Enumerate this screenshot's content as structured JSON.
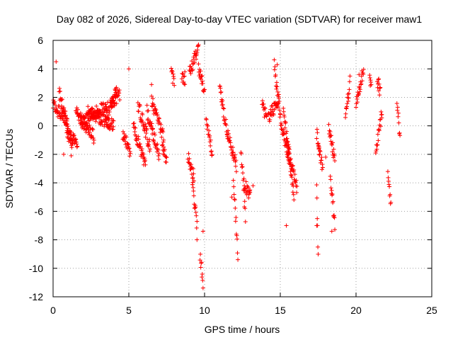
{
  "chart_data": {
    "type": "scatter",
    "title": "Day 082 of 2026, Sidereal Day-to-day VTEC variation (SDTVAR) for receiver maw1",
    "xlabel": "GPS time / hours",
    "ylabel": "SDTVAR / TECUs",
    "xlim": [
      0,
      25
    ],
    "ylim": [
      -12,
      6
    ],
    "xticks": [
      "0",
      "5",
      "10",
      "15",
      "20",
      "25"
    ],
    "yticks": [
      "6",
      "4",
      "2",
      "0",
      "-2",
      "-4",
      "-6",
      "-8",
      "-10",
      "-12"
    ],
    "grid": true,
    "marker": "+",
    "marker_color": "#ff0000",
    "tracks": [
      {
        "t0": 0.0,
        "t1": 1.0,
        "v0": 1.5,
        "v1": 0.2
      },
      {
        "t0": 0.4,
        "t1": 1.3,
        "v0": 2.4,
        "v1": -1.5
      },
      {
        "t0": 0.9,
        "t1": 1.6,
        "v0": -0.5,
        "v1": -1.2
      },
      {
        "t0": 1.5,
        "t1": 2.7,
        "v0": 1.0,
        "v1": -0.8
      },
      {
        "t0": 1.8,
        "t1": 3.6,
        "v0": 0.2,
        "v1": 1.5
      },
      {
        "t0": 2.3,
        "t1": 4.0,
        "v0": 1.0,
        "v1": 0.0
      },
      {
        "t0": 3.5,
        "t1": 4.2,
        "v0": 0.5,
        "v1": 2.5
      },
      {
        "t0": 3.8,
        "t1": 4.4,
        "v0": 1.5,
        "v1": 2.2
      },
      {
        "t0": 4.6,
        "t1": 5.1,
        "v0": -0.5,
        "v1": -2.0
      },
      {
        "t0": 5.3,
        "t1": 6.1,
        "v0": 0.0,
        "v1": -2.8
      },
      {
        "t0": 5.6,
        "t1": 6.4,
        "v0": 1.5,
        "v1": -1.5
      },
      {
        "t0": 6.2,
        "t1": 7.0,
        "v0": 1.0,
        "v1": -2.0
      },
      {
        "t0": 6.5,
        "t1": 7.3,
        "v0": 1.8,
        "v1": -0.8
      },
      {
        "t0": 7.2,
        "t1": 7.5,
        "v0": -1.5,
        "v1": -2.5
      },
      {
        "t0": 7.8,
        "t1": 8.0,
        "v0": 3.6,
        "v1": 3.0
      },
      {
        "t0": 8.5,
        "t1": 8.7,
        "v0": 3.6,
        "v1": 3.0
      },
      {
        "t0": 9.0,
        "t1": 9.6,
        "v0": 3.8,
        "v1": 5.4
      },
      {
        "t0": 9.6,
        "t1": 10.0,
        "v0": 4.0,
        "v1": 2.5
      },
      {
        "t0": 8.9,
        "t1": 9.3,
        "v0": -2.2,
        "v1": -3.6
      },
      {
        "t0": 9.2,
        "t1": 9.5,
        "v0": -4.0,
        "v1": -7.0
      },
      {
        "t0": 9.7,
        "t1": 9.9,
        "v0": -9.0,
        "v1": -11.0
      },
      {
        "t0": 10.1,
        "t1": 10.5,
        "v0": 0.2,
        "v1": -1.8
      },
      {
        "t0": 11.0,
        "t1": 11.5,
        "v0": 2.5,
        "v1": -0.5
      },
      {
        "t0": 11.5,
        "t1": 12.1,
        "v0": -0.5,
        "v1": -2.8
      },
      {
        "t0": 11.9,
        "t1": 12.2,
        "v0": -3.5,
        "v1": -9.0
      },
      {
        "t0": 12.4,
        "t1": 12.7,
        "v0": -1.5,
        "v1": -6.5
      },
      {
        "t0": 12.6,
        "t1": 13.0,
        "v0": -4.0,
        "v1": -5.0
      },
      {
        "t0": 13.8,
        "t1": 14.1,
        "v0": 1.5,
        "v1": 0.5
      },
      {
        "t0": 14.2,
        "t1": 14.9,
        "v0": 0.6,
        "v1": 1.8
      },
      {
        "t0": 14.6,
        "t1": 15.0,
        "v0": 4.2,
        "v1": 0.8
      },
      {
        "t0": 15.0,
        "t1": 15.6,
        "v0": 0.5,
        "v1": -2.5
      },
      {
        "t0": 15.2,
        "t1": 15.9,
        "v0": 1.3,
        "v1": -5.0
      },
      {
        "t0": 15.4,
        "t1": 16.1,
        "v0": -1.0,
        "v1": -4.5
      },
      {
        "t0": 17.4,
        "t1": 17.6,
        "v0": -0.5,
        "v1": -2.0
      },
      {
        "t0": 17.5,
        "t1": 17.8,
        "v0": -1.5,
        "v1": -3.0
      },
      {
        "t0": 17.4,
        "t1": 17.5,
        "v0": -4.0,
        "v1": -9.2
      },
      {
        "t0": 18.2,
        "t1": 18.6,
        "v0": 0.0,
        "v1": -2.5
      },
      {
        "t0": 18.3,
        "t1": 18.6,
        "v0": -3.5,
        "v1": -7.0
      },
      {
        "t0": 19.3,
        "t1": 19.6,
        "v0": 0.5,
        "v1": 3.2
      },
      {
        "t0": 20.0,
        "t1": 20.5,
        "v0": 1.6,
        "v1": 4.0
      },
      {
        "t0": 20.9,
        "t1": 21.0,
        "v0": 3.2,
        "v1": 2.8
      },
      {
        "t0": 21.3,
        "t1": 21.7,
        "v0": -2.0,
        "v1": 0.9
      },
      {
        "t0": 21.4,
        "t1": 21.6,
        "v0": 3.2,
        "v1": 2.4
      },
      {
        "t0": 22.1,
        "t1": 22.3,
        "v0": -3.2,
        "v1": -5.8
      },
      {
        "t0": 22.7,
        "t1": 22.9,
        "v0": 1.8,
        "v1": -0.8
      }
    ],
    "points": [
      [
        0.2,
        4.5
      ],
      [
        0.7,
        -2.0
      ],
      [
        1.2,
        -2.1
      ],
      [
        5.0,
        4.0
      ],
      [
        6.5,
        2.9
      ],
      [
        8.7,
        3.8
      ],
      [
        9.5,
        -8.0
      ],
      [
        9.9,
        -7.4
      ],
      [
        11.8,
        -5.0
      ],
      [
        13.0,
        -4.5
      ],
      [
        13.2,
        -4.2
      ],
      [
        14.8,
        4.3
      ],
      [
        15.4,
        -7.0
      ],
      [
        17.4,
        -7.0
      ],
      [
        18.4,
        -7.4
      ],
      [
        18.0,
        -2.2
      ],
      [
        20.2,
        3.6
      ],
      [
        21.5,
        3.3
      ],
      [
        21.7,
        0.8
      ]
    ]
  }
}
